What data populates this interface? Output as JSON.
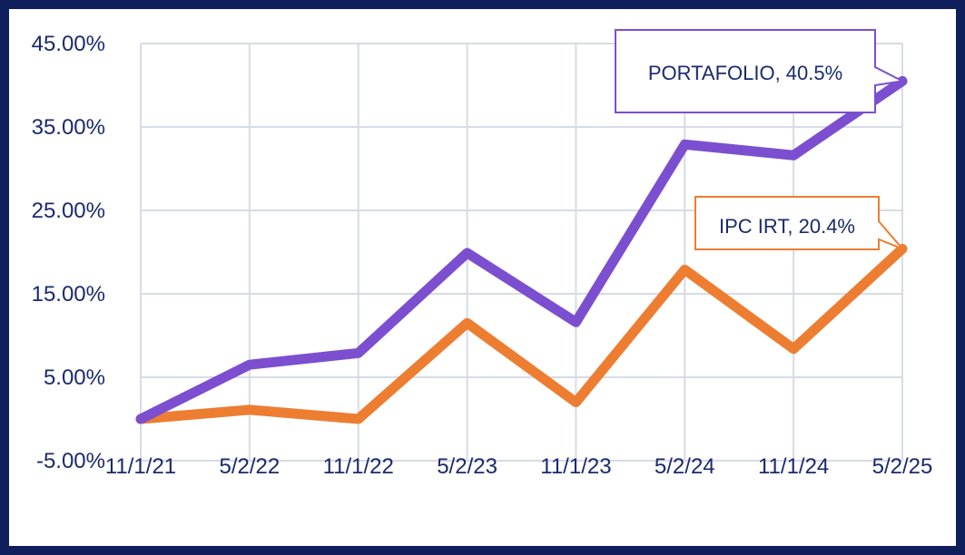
{
  "chart_data": {
    "type": "line",
    "categories": [
      "11/1/21",
      "5/2/22",
      "11/1/22",
      "5/2/23",
      "11/1/23",
      "5/2/24",
      "11/1/24",
      "5/2/25"
    ],
    "y_ticks": [
      "45.00%",
      "35.00%",
      "25.00%",
      "15.00%",
      "5.00%",
      "-5.00%"
    ],
    "y_tick_values": [
      45,
      35,
      25,
      15,
      5,
      -5
    ],
    "ylim": [
      -5,
      45
    ],
    "grid": true,
    "series": [
      {
        "name": "PORTAFOLIO",
        "color": "#7b4fcf",
        "values": [
          0.0,
          6.5,
          7.9,
          19.9,
          11.6,
          32.9,
          31.6,
          40.5
        ],
        "callout": "PORTAFOLIO, 40.5%"
      },
      {
        "name": "IPC IRT",
        "color": "#ed7d31",
        "values": [
          0.0,
          1.1,
          0.0,
          11.5,
          2.0,
          17.9,
          8.4,
          20.4
        ],
        "callout": "IPC IRT, 20.4%"
      }
    ]
  },
  "colors": {
    "frame": "#0f1f5c",
    "grid": "#d6dbe6",
    "text": "#1a2a6c"
  }
}
